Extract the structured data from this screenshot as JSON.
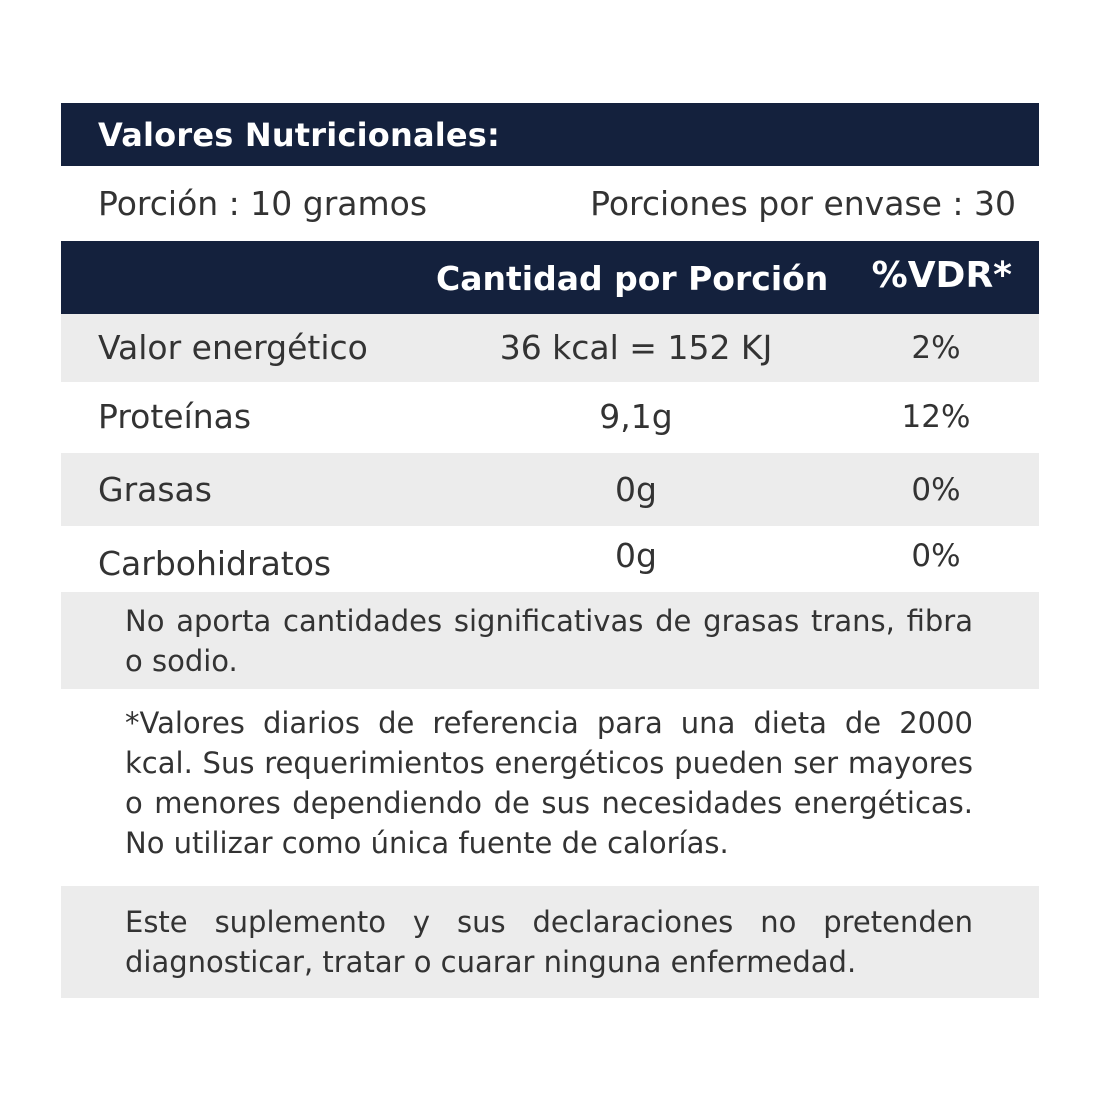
{
  "label": {
    "title": "Valores Nutricionales:",
    "serving_size": "Porción : 10 gramos",
    "servings_per_container": "Porciones por envase : 30",
    "columns": {
      "amount": "Cantidad por Porción",
      "daily_value": "%VDR*"
    },
    "rows": [
      {
        "name": "Valor energético",
        "amount": "36 kcal = 152 KJ",
        "daily_value": "2%"
      },
      {
        "name": "Proteínas",
        "amount": "9,1g",
        "daily_value": "12%"
      },
      {
        "name": "Grasas",
        "amount": "0g",
        "daily_value": "0%"
      },
      {
        "name": "Carbohidratos",
        "amount": "0g",
        "daily_value": "0%"
      }
    ],
    "notes": {
      "trans_fat_note": "No aporta cantidades significativas de grasas trans, fibra o sodio.",
      "reference_note": "*Valores diarios de referencia para una dieta de 2000 kcal. Sus requerimientos energéticos pueden ser mayores o menores dependiendo de sus necesidades energéticas. No utilizar como única fuente de calorías.",
      "disclaimer": "Este suplemento y sus declaraciones no pretenden diagnosticar, tratar o cuarar ninguna enfermedad."
    }
  },
  "colors": {
    "header_navy": "#14213d",
    "row_grey": "#ececec",
    "text": "#333333"
  }
}
